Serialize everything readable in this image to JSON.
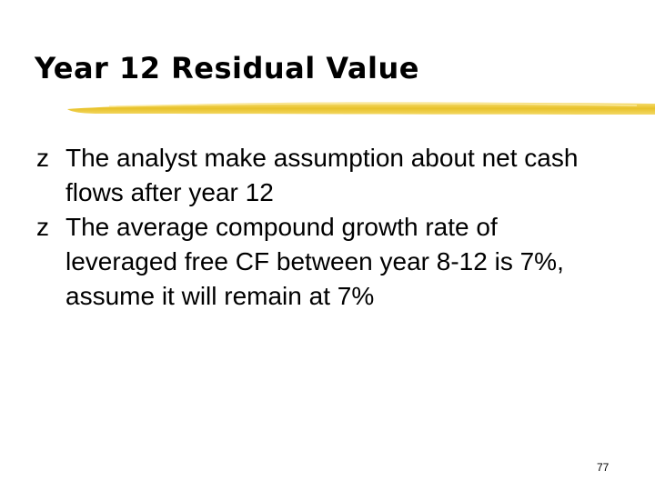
{
  "header": {
    "title": "Year 12 Residual Value"
  },
  "bullet": "z",
  "bullets": [
    "The analyst make assumption about net cash flows after year 12",
    "The average compound growth rate of leveraged free CF between year 8-12 is 7%, assume it will remain at 7%"
  ],
  "page_number": "77"
}
